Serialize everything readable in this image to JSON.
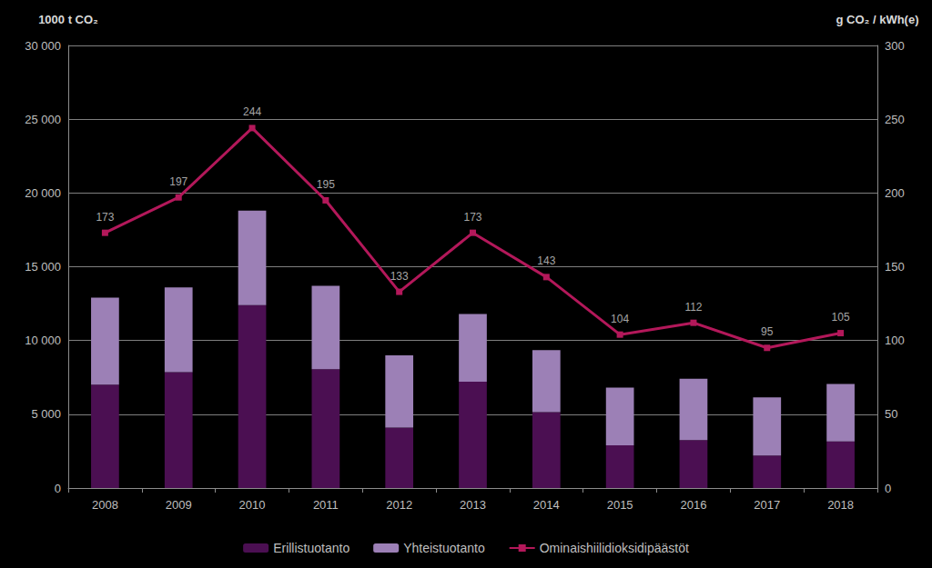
{
  "chart_data": {
    "type": "bar",
    "categories": [
      "2008",
      "2009",
      "2010",
      "2011",
      "2012",
      "2013",
      "2014",
      "2015",
      "2016",
      "2017",
      "2018"
    ],
    "series": [
      {
        "name": "Erillistuotanto",
        "type": "bar",
        "color": "#4b0f52",
        "values": [
          7000,
          7850,
          12400,
          8050,
          4100,
          7200,
          5150,
          2900,
          3250,
          2200,
          3150
        ]
      },
      {
        "name": "Yhteistuotanto",
        "type": "bar",
        "color": "#9c80b6",
        "values": [
          5900,
          5750,
          6400,
          5650,
          4900,
          4600,
          4200,
          3900,
          4150,
          3950,
          3900
        ]
      },
      {
        "name": "Ominaishiilidioksidipäästöt",
        "type": "line",
        "axis": "y2",
        "color": "#b3185a",
        "marker": "square",
        "data_labels": true,
        "values": [
          173,
          197,
          244,
          195,
          133,
          173,
          143,
          104,
          112,
          95,
          105
        ]
      }
    ],
    "y_label": "1000 t CO₂",
    "y2_label": "g CO₂ / kWh(e)",
    "ylim": [
      0,
      30000
    ],
    "yticks": [
      0,
      {
        "value": 5000,
        "label": "5 000"
      },
      {
        "value": 10000,
        "label": "10 000"
      },
      {
        "value": 15000,
        "label": "15 000"
      },
      {
        "value": 20000,
        "label": "20 000"
      },
      {
        "value": 25000,
        "label": "25 000"
      },
      {
        "value": 30000,
        "label": "30 000"
      }
    ],
    "y2lim": [
      0,
      300
    ],
    "y2ticks": [
      0,
      50,
      100,
      150,
      200,
      250,
      300
    ],
    "stacked": true,
    "grid": true,
    "legend": "bottom"
  }
}
